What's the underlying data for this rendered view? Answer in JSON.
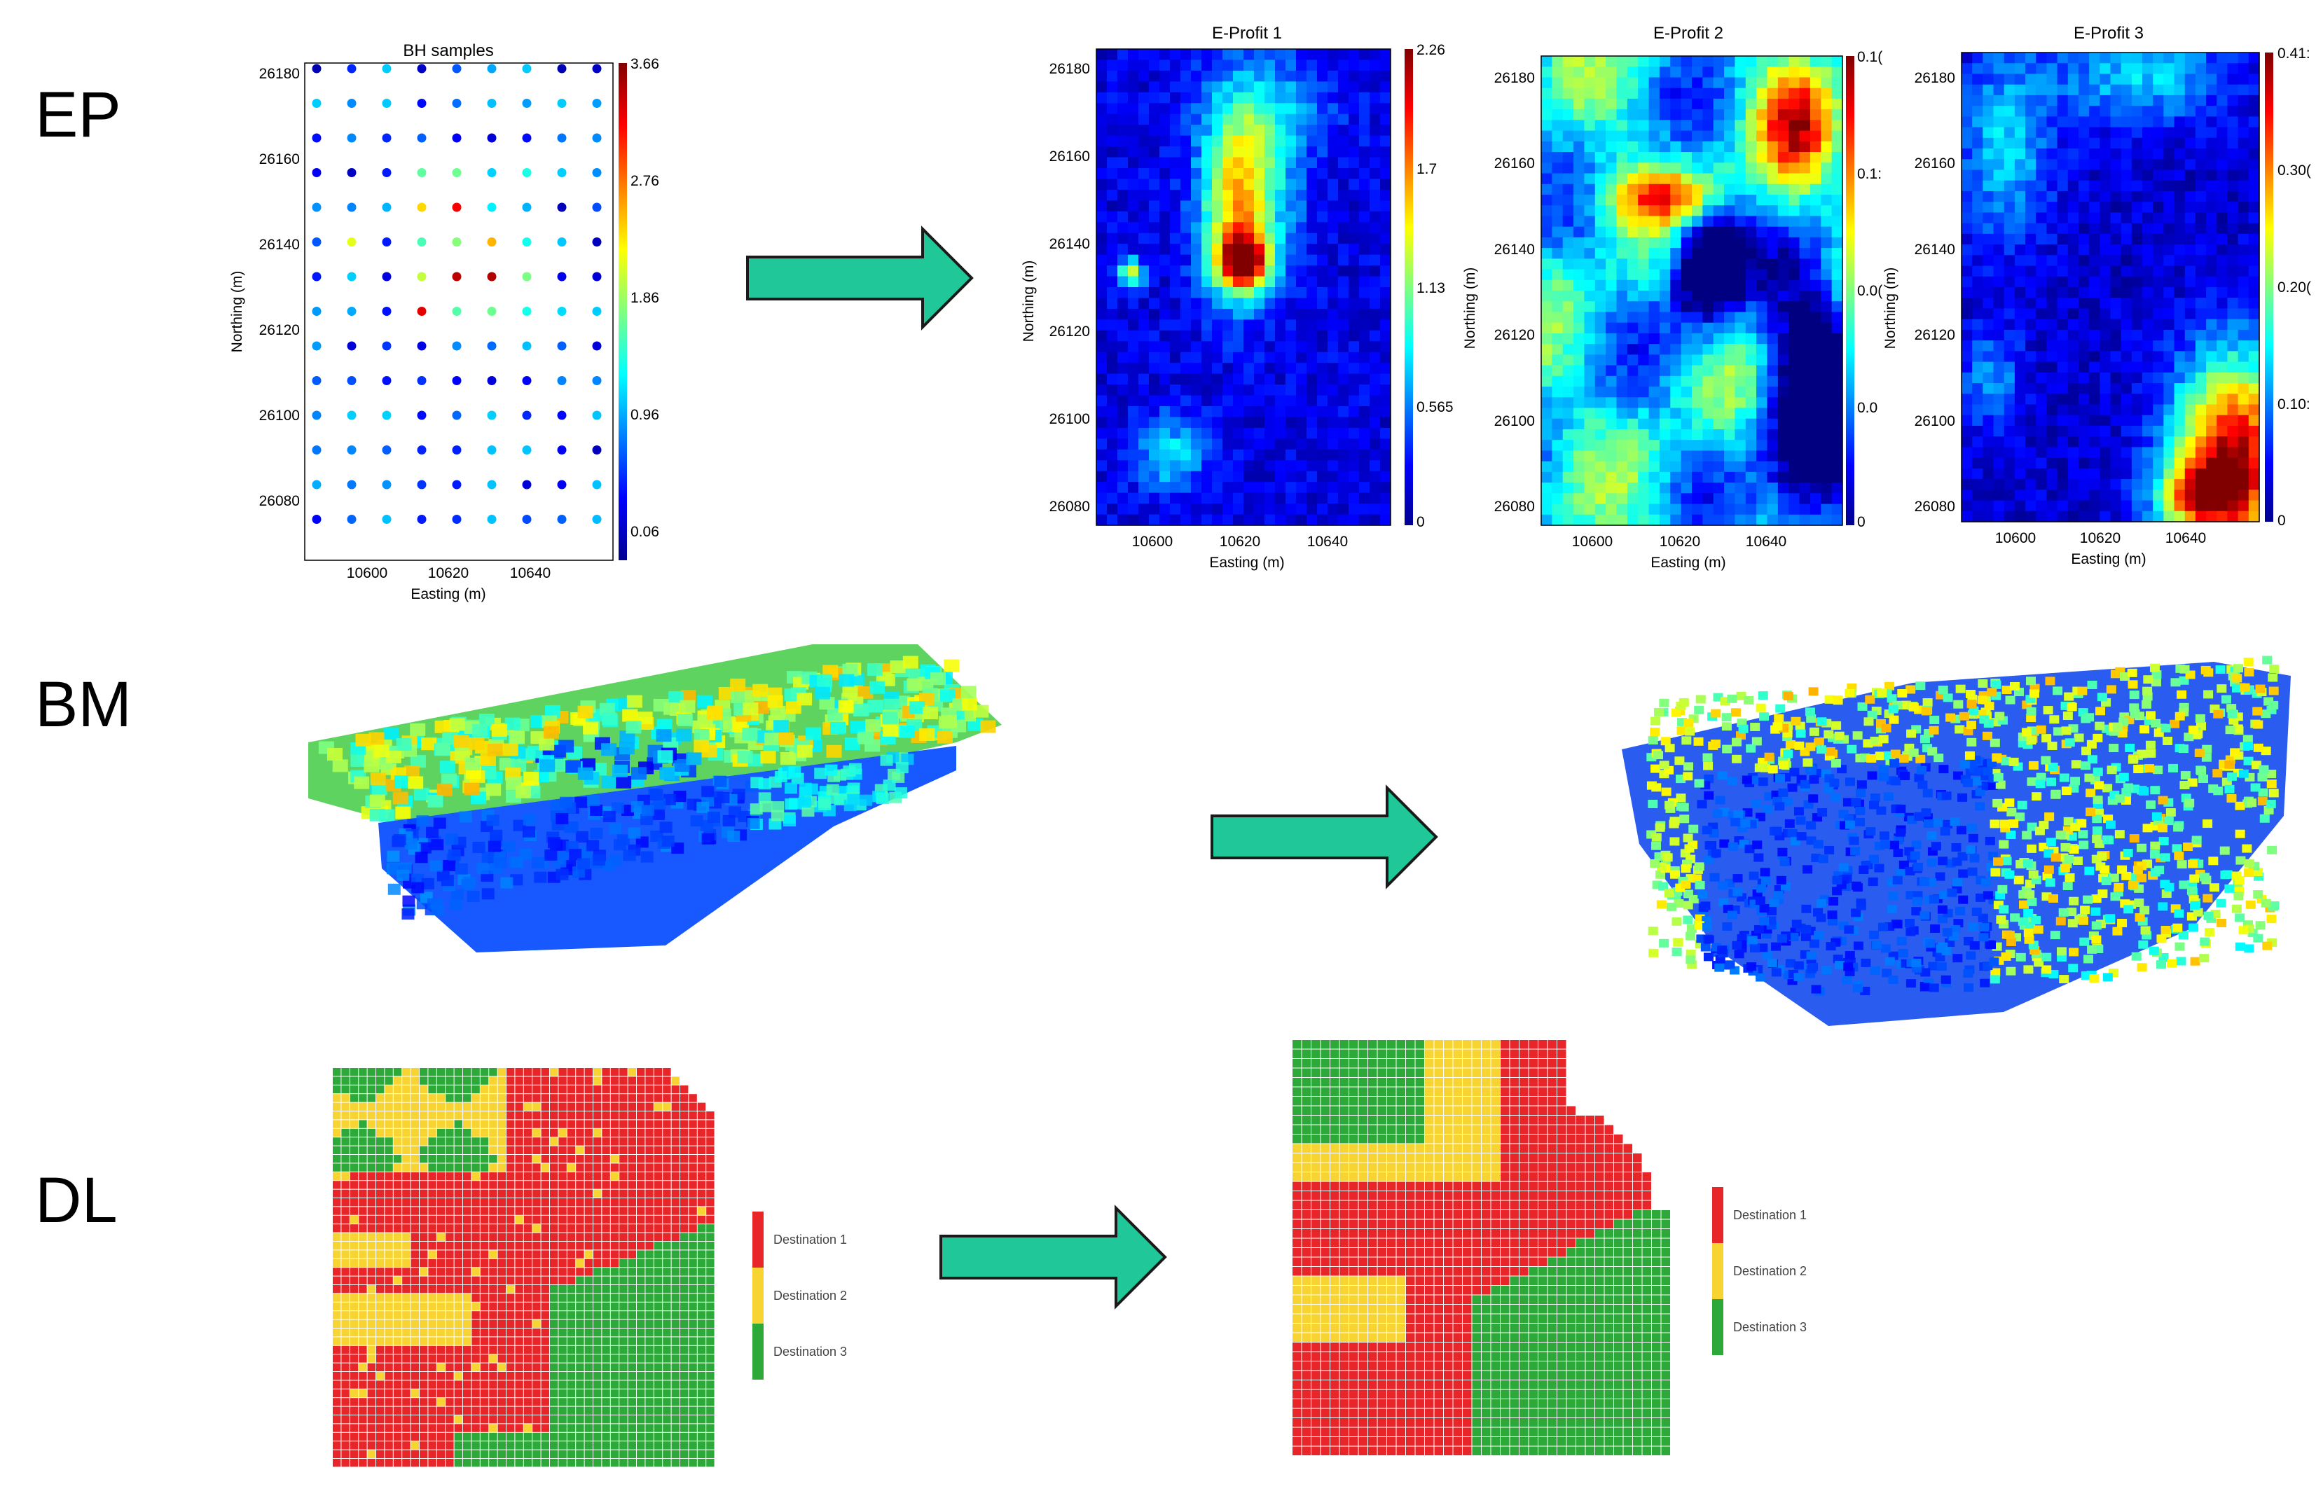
{
  "rows": {
    "ep": "EP",
    "bm": "BM",
    "dl": "DL"
  },
  "colors": {
    "arrow_fill": "#1fc799",
    "arrow_stroke": "#1a1a1a",
    "dest1": "#e8262a",
    "dest2": "#f7d431",
    "dest3": "#2da93a",
    "jet_low": "#00008f",
    "jet_high": "#800000"
  },
  "bh_samples": {
    "title": "BH samples",
    "xlabel": "Easting (m)",
    "ylabel": "Northing (m)",
    "x_ticks": [
      "10600",
      "10620",
      "10640"
    ],
    "y_ticks": [
      "26180",
      "26160",
      "26140",
      "26120",
      "26100",
      "26080"
    ],
    "colorbar_ticks": [
      "3.66",
      "2.76",
      "1.86",
      "0.96",
      "0.06"
    ]
  },
  "profits": [
    {
      "title": "E-Profit 1",
      "xlabel": "Easting (m)",
      "ylabel": "Northing (m)",
      "x_ticks": [
        "10600",
        "10620",
        "10640"
      ],
      "y_ticks": [
        "26180",
        "26160",
        "26140",
        "26120",
        "26100",
        "26080"
      ],
      "colorbar_ticks": [
        "2.26",
        "1.7",
        "1.13",
        "0.565",
        "0"
      ]
    },
    {
      "title": "E-Profit 2",
      "xlabel": "Easting (m)",
      "ylabel": "Northing (m)",
      "x_ticks": [
        "10600",
        "10620",
        "10640"
      ],
      "y_ticks": [
        "26180",
        "26160",
        "26140",
        "26120",
        "26100",
        "26080"
      ],
      "colorbar_ticks": [
        "0.1(",
        "0.1:",
        "0.0(",
        "0.0",
        "0"
      ]
    },
    {
      "title": "E-Profit 3",
      "xlabel": "Easting (m)",
      "ylabel": "Northing (m)",
      "x_ticks": [
        "10600",
        "10620",
        "10640"
      ],
      "y_ticks": [
        "26180",
        "26160",
        "26140",
        "26120",
        "26100",
        "26080"
      ],
      "colorbar_ticks": [
        "0.41:",
        "0.30(",
        "0.20(",
        "0.10:",
        "0"
      ]
    }
  ],
  "dl_legend_left": [
    "Destination 1",
    "Destination 2",
    "Destination 3"
  ],
  "dl_legend_right": [
    "Destination 1",
    "Destination 2",
    "Destination 3"
  ]
}
